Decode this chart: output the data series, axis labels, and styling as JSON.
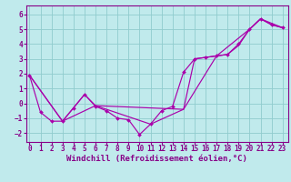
{
  "xlabel": "Windchill (Refroidissement éolien,°C)",
  "bg_color": "#c0eaec",
  "line_color": "#aa00aa",
  "grid_color": "#90ccce",
  "spine_color": "#880088",
  "x_ticks": [
    0,
    1,
    2,
    3,
    4,
    5,
    6,
    7,
    8,
    9,
    10,
    11,
    12,
    13,
    14,
    15,
    16,
    17,
    18,
    19,
    20,
    21,
    22,
    23
  ],
  "y_ticks": [
    -2,
    -1,
    0,
    1,
    2,
    3,
    4,
    5,
    6
  ],
  "xlim": [
    -0.3,
    23.5
  ],
  "ylim": [
    -2.6,
    6.6
  ],
  "line1_x": [
    0,
    1,
    2,
    3,
    4,
    5,
    6,
    7,
    8,
    9,
    10,
    11,
    12,
    13,
    14,
    15,
    16,
    17,
    18,
    19,
    20,
    21,
    22,
    23
  ],
  "line1_y": [
    1.9,
    -0.6,
    -1.2,
    -1.2,
    -0.3,
    0.6,
    -0.2,
    -0.5,
    -1.0,
    -1.1,
    -2.1,
    -1.4,
    -0.5,
    -0.2,
    2.1,
    3.0,
    3.1,
    3.2,
    3.3,
    4.0,
    5.0,
    5.7,
    5.3,
    5.1
  ],
  "line2_x": [
    0,
    3,
    5,
    6,
    14,
    15,
    17,
    18,
    19,
    20,
    21,
    22,
    23
  ],
  "line2_y": [
    1.9,
    -1.2,
    0.6,
    -0.15,
    -0.4,
    3.0,
    3.2,
    3.3,
    3.9,
    5.0,
    5.7,
    5.3,
    5.1
  ],
  "line3_x": [
    0,
    3,
    6,
    11,
    14,
    17,
    20,
    21,
    23
  ],
  "line3_y": [
    1.9,
    -1.2,
    -0.15,
    -1.4,
    -0.4,
    3.2,
    5.0,
    5.7,
    5.1
  ],
  "tick_fontsize": 5.5,
  "label_fontsize": 6.5
}
